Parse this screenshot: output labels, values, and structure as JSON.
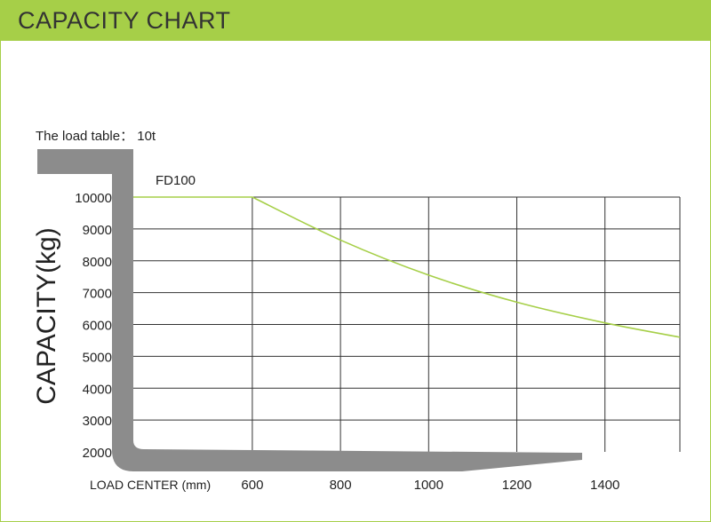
{
  "header": {
    "title": "CAPACITY CHART"
  },
  "colors": {
    "accent": "#a6cf48",
    "fork": "#8c8c8c",
    "grid": "#333333",
    "line": "#a6cf48"
  },
  "chart_data": {
    "type": "line",
    "subtitle": "The load table： 10t",
    "ylabel": "CAPACITY(kg)",
    "xlabel": "LOAD CENTER (mm)",
    "x_ticks": [
      600,
      800,
      1000,
      1200,
      1400
    ],
    "y_ticks": [
      10000,
      9000,
      8000,
      7000,
      6000,
      5000,
      4000,
      3000,
      2000
    ],
    "xlim": [
      330,
      1570
    ],
    "ylim": [
      2000,
      10000
    ],
    "grid": true,
    "series": [
      {
        "name": "FD100",
        "points": [
          {
            "x": 330,
            "y": 10000
          },
          {
            "x": 600,
            "y": 10000
          },
          {
            "x": 800,
            "y": 8650
          },
          {
            "x": 1000,
            "y": 7550
          },
          {
            "x": 1200,
            "y": 6700
          },
          {
            "x": 1400,
            "y": 6050
          },
          {
            "x": 1570,
            "y": 5600
          }
        ]
      }
    ]
  }
}
